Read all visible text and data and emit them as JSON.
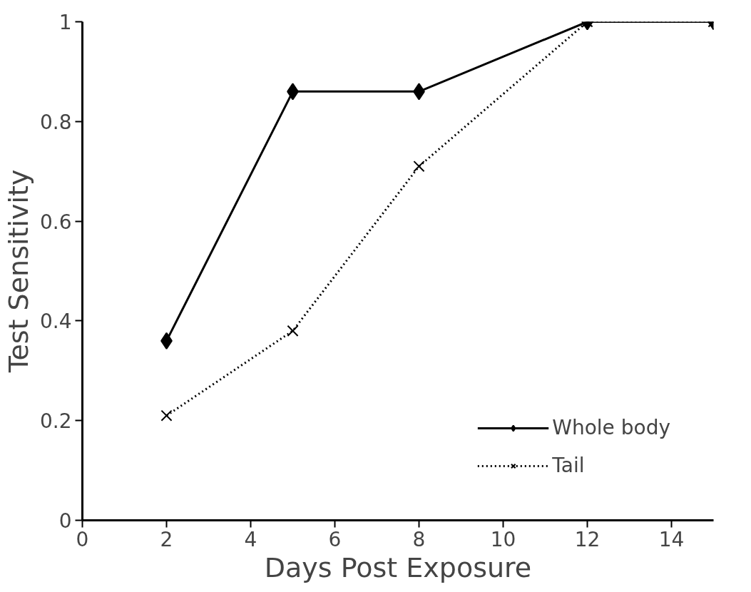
{
  "chart_data": {
    "type": "line",
    "xlabel": "Days Post Exposure",
    "ylabel": "Test Sensitivity",
    "xlim": [
      0,
      15
    ],
    "xticks": [
      0,
      2,
      4,
      6,
      8,
      10,
      12,
      14
    ],
    "ylim": [
      0,
      1
    ],
    "yticks": [
      0,
      0.2,
      0.4,
      0.6,
      0.8,
      1
    ],
    "grid": false,
    "legend": "bottom right",
    "series": [
      {
        "name": "Whole body",
        "color": "#000000",
        "x": [
          2,
          5,
          8,
          12,
          15
        ],
        "values": [
          0.36,
          0.86,
          0.86,
          1,
          1
        ],
        "marker": "diamond",
        "line_style": "solid"
      },
      {
        "name": "Tail",
        "color": "#000000",
        "x": [
          2,
          5,
          8,
          12,
          15
        ],
        "values": [
          0.21,
          0.38,
          0.71,
          1,
          1
        ],
        "marker": "cross",
        "line_style": "dotted"
      }
    ]
  }
}
